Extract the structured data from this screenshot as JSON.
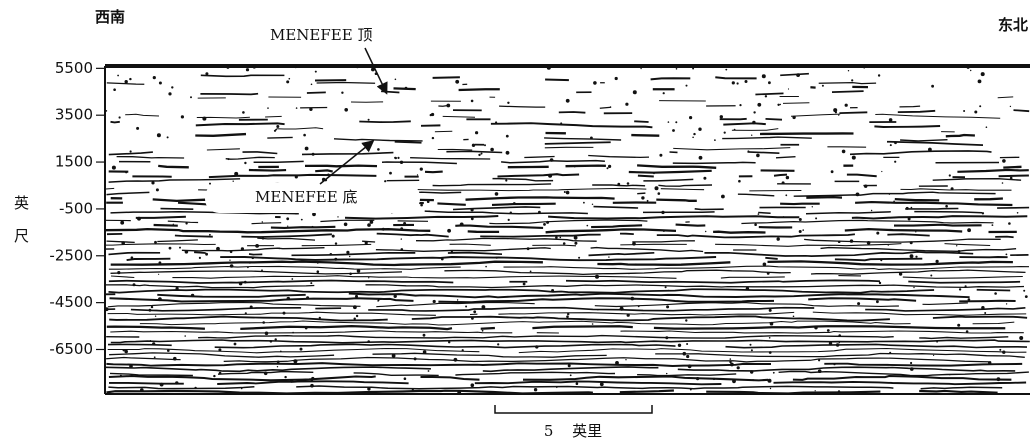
{
  "chart_data": {
    "type": "seismic-section",
    "left_label": "西南",
    "right_label": "东北",
    "annotations": [
      "MENEFEE 顶",
      "MENEFEE 底"
    ],
    "ylabel": "英尺",
    "ylim": [
      -8400,
      5600
    ],
    "yticks": [
      5500,
      3500,
      1500,
      -500,
      -2500,
      -4500,
      -6500
    ],
    "scale_bar": "5 英里"
  }
}
